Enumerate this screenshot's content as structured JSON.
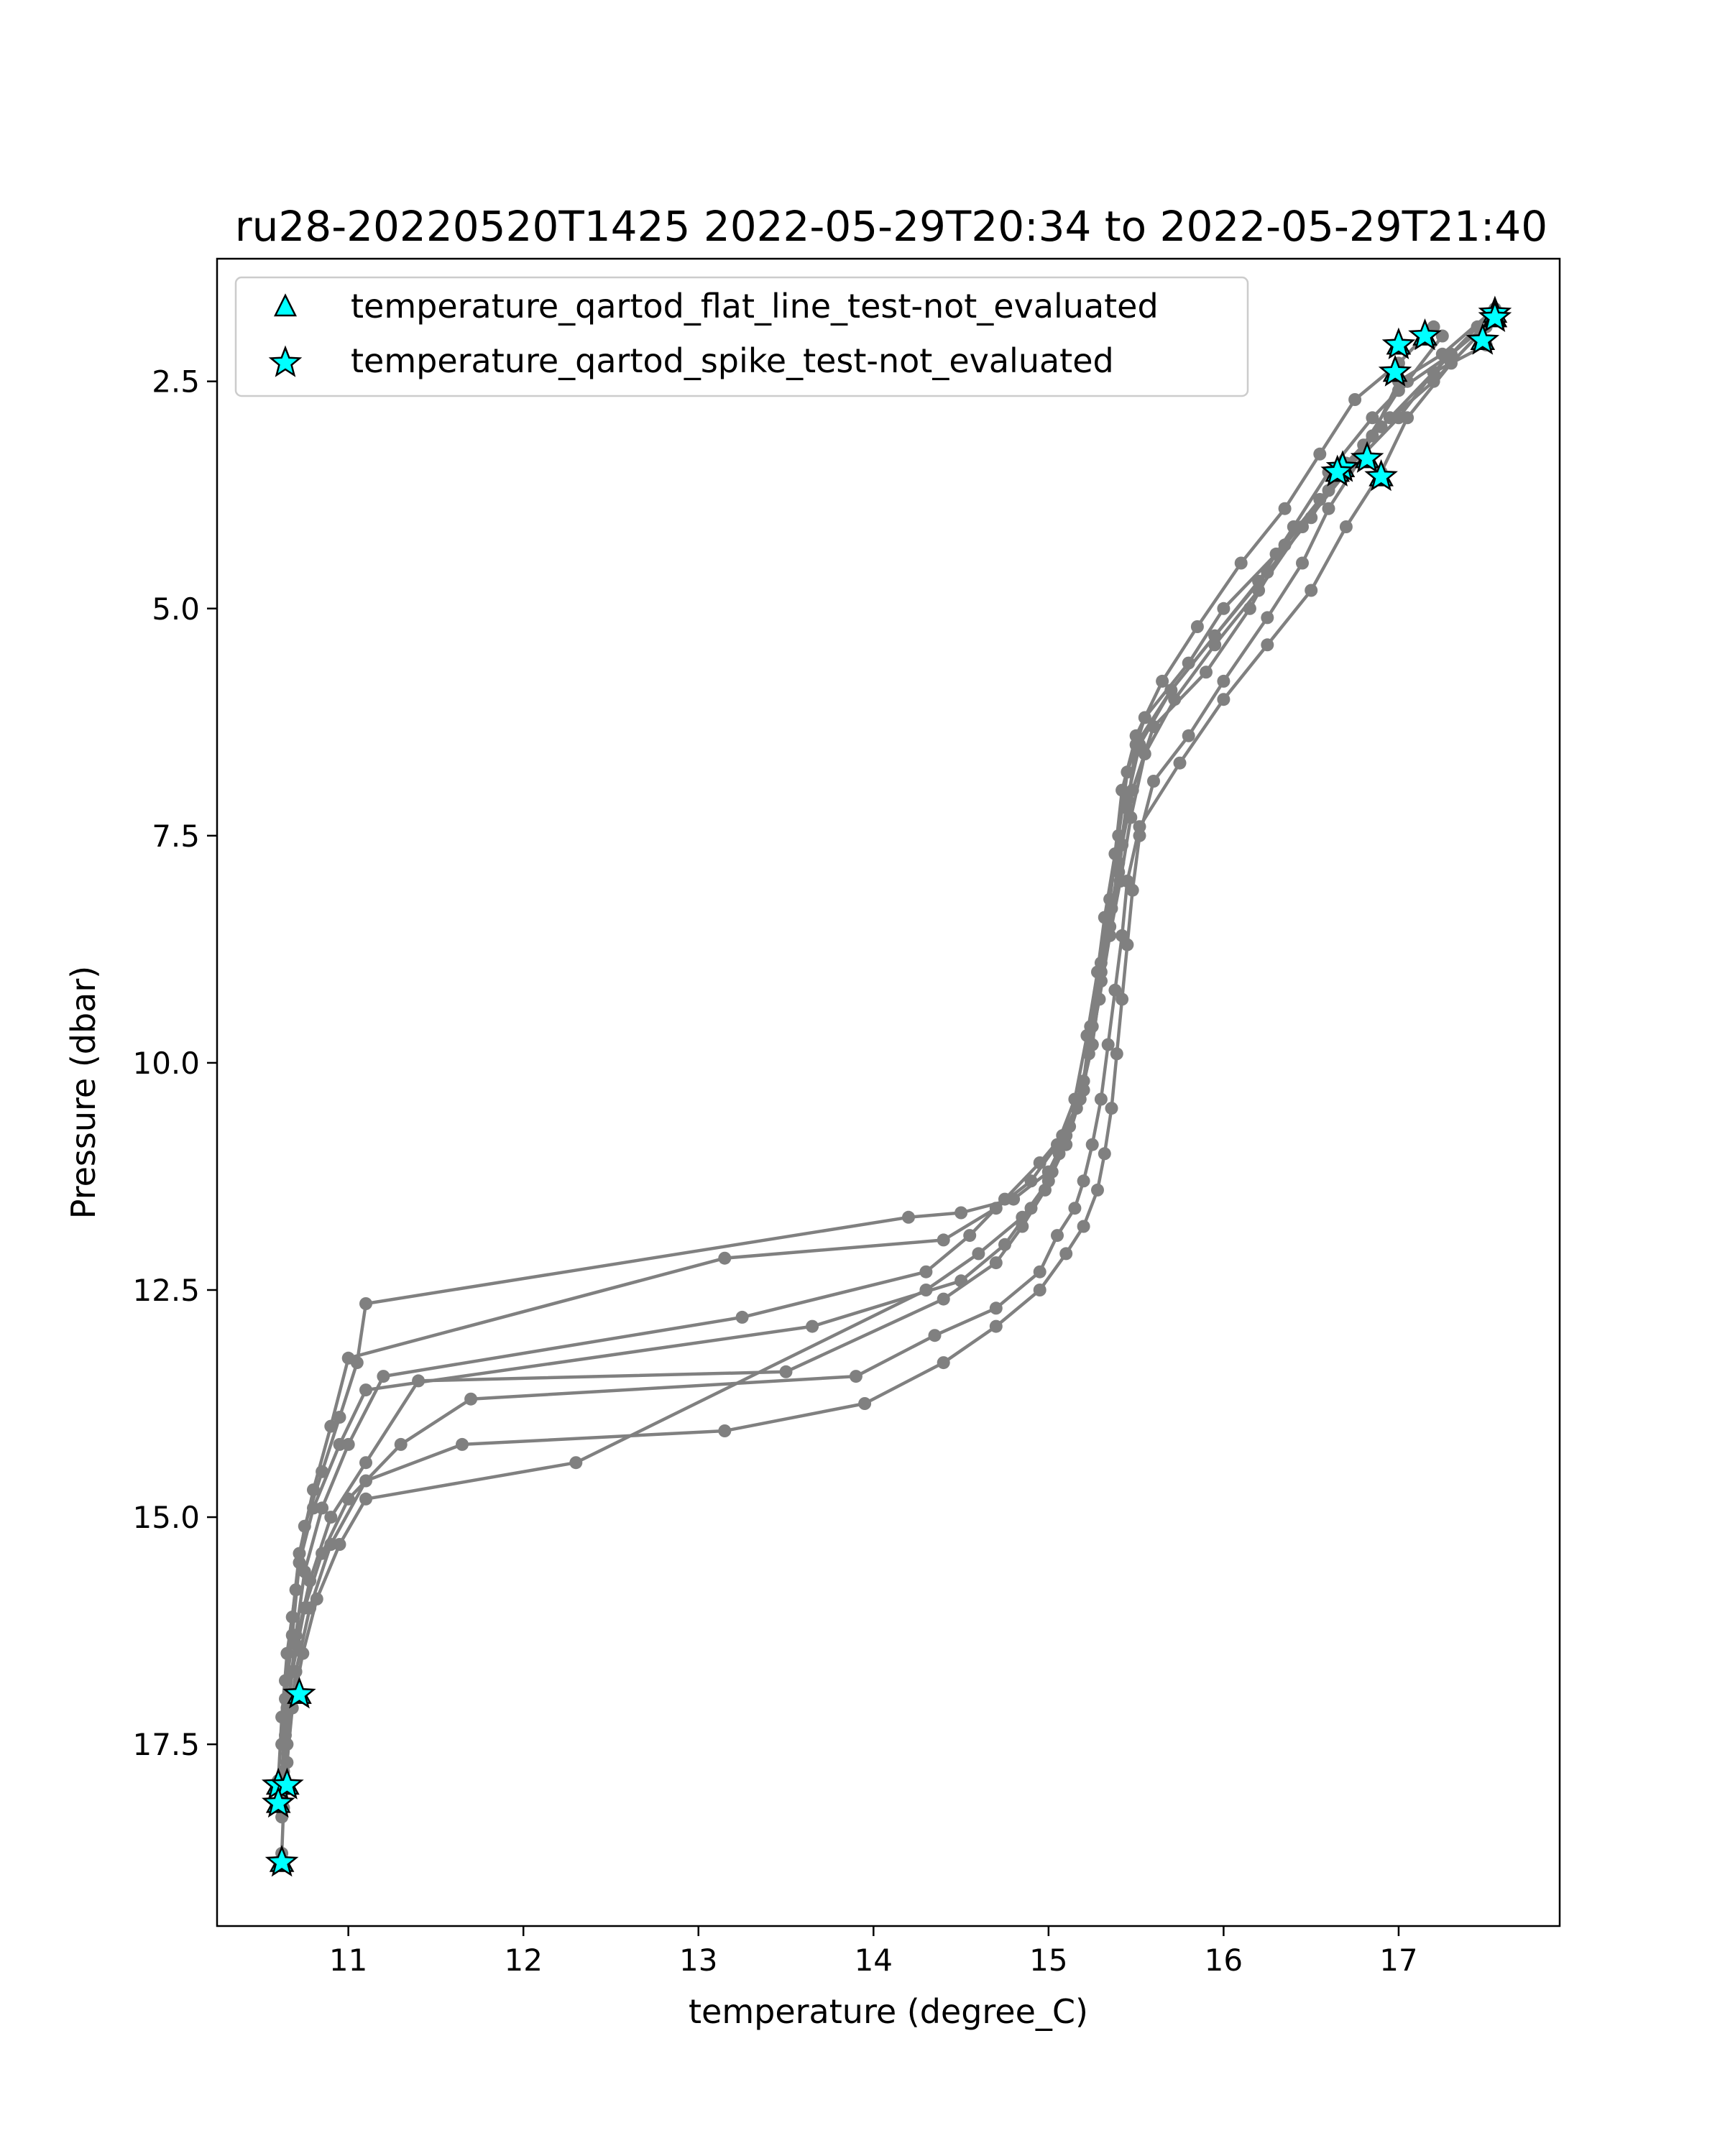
{
  "chart_data": {
    "type": "scatter",
    "title": "ru28-20220520T1425 2022-05-29T20:34 to 2022-05-29T21:40",
    "xlabel": "temperature (degree_C)",
    "ylabel": "Pressure (dbar)",
    "xlim": [
      10.25,
      17.92
    ],
    "ylim": [
      19.5,
      1.15
    ],
    "y_inverted": true,
    "x_ticks": [
      11,
      12,
      13,
      14,
      15,
      16,
      17
    ],
    "x_tick_labels": [
      "11",
      "12",
      "13",
      "14",
      "15",
      "16",
      "17"
    ],
    "y_ticks": [
      2.5,
      5.0,
      7.5,
      10.0,
      12.5,
      15.0,
      17.5
    ],
    "y_tick_labels": [
      "2.5",
      "5.0",
      "7.5",
      "10.0",
      "12.5",
      "15.0",
      "17.5"
    ],
    "grid": false,
    "legend_position": "upper-left",
    "colors": {
      "profile_line": "#808080",
      "flag_fill": "#00ffff",
      "flag_edge": "#000000"
    },
    "legend": [
      {
        "label": "temperature_qartod_flat_line_test-not_evaluated",
        "marker": "triangle-icon"
      },
      {
        "label": "temperature_qartod_spike_test-not_evaluated",
        "marker": "star-icon"
      }
    ],
    "profiles": [
      {
        "x": [
          17.55,
          17.3,
          17.0,
          16.8,
          16.55,
          16.3,
          16.0,
          15.8,
          15.55,
          15.45,
          15.4,
          15.35,
          15.3,
          15.25,
          15.2,
          15.1,
          15.0,
          14.8,
          14.5,
          14.2,
          11.1,
          11.05,
          10.95,
          10.85,
          10.75,
          10.7,
          10.65,
          10.62,
          10.6
        ],
        "y": [
          1.8,
          2.2,
          2.6,
          3.2,
          3.8,
          4.4,
          5.0,
          5.6,
          6.2,
          6.8,
          7.5,
          8.2,
          8.9,
          9.6,
          10.3,
          10.8,
          11.2,
          11.5,
          11.65,
          11.7,
          12.65,
          13.3,
          13.9,
          14.5,
          15.1,
          15.8,
          16.5,
          17.2,
          17.9
        ]
      },
      {
        "x": [
          17.2,
          17.0,
          16.75,
          16.55,
          16.35,
          16.1,
          15.85,
          15.65,
          15.5,
          15.42,
          15.38,
          15.32,
          15.28,
          15.22,
          15.15,
          15.05,
          14.9,
          14.7,
          14.4,
          13.15,
          11.0,
          10.9,
          10.8,
          10.72,
          10.68,
          10.64,
          10.62
        ],
        "y": [
          1.9,
          2.3,
          2.7,
          3.3,
          3.9,
          4.5,
          5.2,
          5.8,
          6.4,
          7.0,
          7.7,
          8.4,
          9.0,
          9.7,
          10.4,
          10.9,
          11.3,
          11.6,
          11.95,
          12.15,
          13.25,
          14.0,
          14.7,
          15.4,
          16.1,
          16.8,
          17.5
        ]
      },
      {
        "x": [
          17.5,
          17.2,
          16.95,
          16.7,
          16.5,
          16.25,
          15.95,
          15.7,
          15.52,
          15.45,
          15.4,
          15.35,
          15.3,
          15.25,
          15.18,
          15.08,
          14.95,
          14.75,
          14.55,
          14.3,
          13.25,
          11.2,
          11.0,
          10.85,
          10.75,
          10.7,
          10.66,
          10.63
        ],
        "y": [
          2.1,
          2.4,
          2.9,
          3.4,
          4.0,
          4.6,
          5.3,
          5.9,
          6.5,
          7.1,
          7.8,
          8.5,
          9.1,
          9.8,
          10.4,
          10.8,
          11.1,
          11.5,
          11.9,
          12.3,
          12.8,
          13.45,
          14.2,
          14.9,
          15.6,
          16.3,
          17.0,
          17.8
        ]
      },
      {
        "x": [
          17.55,
          17.25,
          17.0,
          16.85,
          16.6,
          16.35,
          16.15,
          15.9,
          15.6,
          15.48,
          15.42,
          15.36,
          15.3,
          15.24,
          15.2,
          15.12,
          15.02,
          14.9,
          14.75,
          14.5,
          13.65,
          11.1,
          10.95,
          10.8,
          10.72,
          10.68,
          10.64,
          10.62
        ],
        "y": [
          1.7,
          2.2,
          2.5,
          3.1,
          3.7,
          4.3,
          5.0,
          5.7,
          6.3,
          7.0,
          7.6,
          8.3,
          9.0,
          9.6,
          10.2,
          10.7,
          11.2,
          11.6,
          12.0,
          12.4,
          12.9,
          13.6,
          14.2,
          14.9,
          15.5,
          16.3,
          17.0,
          17.9
        ]
      },
      {
        "x": [
          17.5,
          17.2,
          16.9,
          16.7,
          16.45,
          16.2,
          15.95,
          15.72,
          15.55,
          15.47,
          15.41,
          15.35,
          15.29,
          15.23,
          15.16,
          15.06,
          14.98,
          14.85,
          14.7,
          14.4,
          13.5,
          11.4,
          11.1,
          10.9,
          10.78,
          10.7,
          10.65,
          10.62
        ],
        "y": [
          1.9,
          2.5,
          3.0,
          3.5,
          4.1,
          4.8,
          5.4,
          6.0,
          6.6,
          7.3,
          8.0,
          8.6,
          9.3,
          9.9,
          10.5,
          11.0,
          11.4,
          11.8,
          12.2,
          12.6,
          13.4,
          13.5,
          14.4,
          15.0,
          15.7,
          16.4,
          17.1,
          17.9
        ]
      },
      {
        "x": [
          17.55,
          17.3,
          17.05,
          16.9,
          16.7,
          16.5,
          16.25,
          16.0,
          15.75,
          15.52,
          15.45,
          15.42,
          15.38,
          15.34,
          15.3,
          15.25,
          15.2,
          15.15,
          15.05,
          14.95,
          14.7,
          14.35,
          13.9,
          11.7,
          11.3,
          11.0,
          10.85,
          10.75,
          10.68,
          10.64,
          10.62
        ],
        "y": [
          1.8,
          2.3,
          2.9,
          3.5,
          4.1,
          4.8,
          5.4,
          6.0,
          6.7,
          7.4,
          8.0,
          8.6,
          9.2,
          9.8,
          10.4,
          10.9,
          11.3,
          11.6,
          11.9,
          12.3,
          12.7,
          13.0,
          13.45,
          13.7,
          14.2,
          14.8,
          15.4,
          16.0,
          16.7,
          17.4,
          18.2
        ]
      },
      {
        "x": [
          17.45,
          17.2,
          17.0,
          16.8,
          16.6,
          16.45,
          16.25,
          16.0,
          15.8,
          15.6,
          15.52,
          15.48,
          15.45,
          15.42,
          15.39,
          15.36,
          15.32,
          15.28,
          15.2,
          15.1,
          14.95,
          14.7,
          14.4,
          13.95,
          13.15,
          11.65,
          11.1,
          10.9,
          10.78,
          10.7,
          10.65,
          10.62
        ],
        "y": [
          1.9,
          2.4,
          2.9,
          3.3,
          3.9,
          4.5,
          5.1,
          5.8,
          6.4,
          6.9,
          7.5,
          8.1,
          8.7,
          9.3,
          9.9,
          10.5,
          11.0,
          11.4,
          11.8,
          12.1,
          12.5,
          12.9,
          13.3,
          13.75,
          14.05,
          14.2,
          14.6,
          15.3,
          16.0,
          16.7,
          17.5,
          18.3
        ]
      },
      {
        "x": [
          17.25,
          17.05,
          16.85,
          16.6,
          16.4,
          16.2,
          15.95,
          15.7,
          15.5,
          15.45,
          15.4,
          15.35,
          15.3,
          15.25,
          15.18,
          15.1,
          15.0,
          14.85,
          14.6,
          14.3,
          12.3,
          11.1,
          10.95,
          10.82,
          10.74,
          10.68,
          10.65,
          10.63,
          10.62
        ],
        "y": [
          2.0,
          2.5,
          2.9,
          3.5,
          4.1,
          4.7,
          5.3,
          5.9,
          6.5,
          7.2,
          7.9,
          8.5,
          9.1,
          9.8,
          10.4,
          10.9,
          11.3,
          11.7,
          12.1,
          12.5,
          14.4,
          14.8,
          15.3,
          15.9,
          16.5,
          17.1,
          17.7,
          18.2,
          18.7
        ]
      }
    ],
    "flagged_points": {
      "flat_line_not_evaluated": [
        {
          "x": 17.55,
          "y": 1.75
        },
        {
          "x": 17.55,
          "y": 1.8
        },
        {
          "x": 17.48,
          "y": 2.05
        },
        {
          "x": 17.15,
          "y": 2.0
        },
        {
          "x": 17.0,
          "y": 2.1
        },
        {
          "x": 16.98,
          "y": 2.4
        },
        {
          "x": 16.82,
          "y": 3.35
        },
        {
          "x": 16.9,
          "y": 3.55
        },
        {
          "x": 16.68,
          "y": 3.45
        },
        {
          "x": 16.65,
          "y": 3.5
        },
        {
          "x": 10.72,
          "y": 16.95
        },
        {
          "x": 10.6,
          "y": 17.95
        },
        {
          "x": 10.65,
          "y": 17.95
        },
        {
          "x": 10.6,
          "y": 18.15
        },
        {
          "x": 10.62,
          "y": 18.8
        }
      ],
      "spike_not_evaluated": [
        {
          "x": 17.55,
          "y": 1.75
        },
        {
          "x": 17.55,
          "y": 1.8
        },
        {
          "x": 17.48,
          "y": 2.05
        },
        {
          "x": 17.15,
          "y": 2.0
        },
        {
          "x": 17.0,
          "y": 2.1
        },
        {
          "x": 16.98,
          "y": 2.4
        },
        {
          "x": 16.82,
          "y": 3.35
        },
        {
          "x": 16.9,
          "y": 3.55
        },
        {
          "x": 16.68,
          "y": 3.45
        },
        {
          "x": 16.65,
          "y": 3.5
        },
        {
          "x": 10.72,
          "y": 16.95
        },
        {
          "x": 10.6,
          "y": 17.95
        },
        {
          "x": 10.65,
          "y": 17.95
        },
        {
          "x": 10.6,
          "y": 18.15
        },
        {
          "x": 10.62,
          "y": 18.8
        }
      ]
    }
  }
}
